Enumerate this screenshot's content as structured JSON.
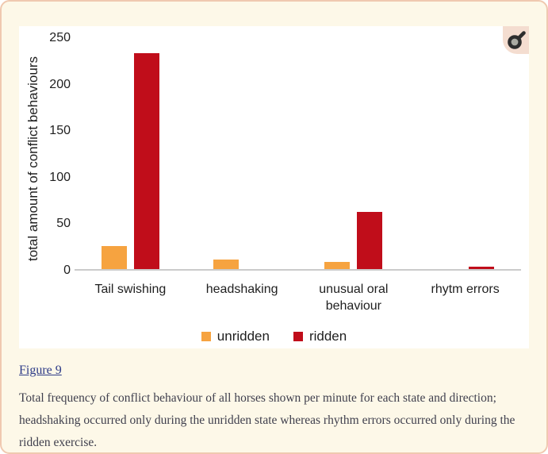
{
  "figure_panel": {
    "zoom_button": {
      "icon": "magnifier-icon"
    }
  },
  "chart_data": {
    "type": "bar",
    "categories": [
      "Tail swishing",
      "headshaking",
      "unusual oral behaviour",
      "rhytm errors"
    ],
    "series": [
      {
        "name": "unridden",
        "color": "#F6A340",
        "values": [
          25,
          10,
          8,
          0
        ]
      },
      {
        "name": "ridden",
        "color": "#C00D1A",
        "values": [
          233,
          0,
          62,
          3
        ]
      }
    ],
    "title": "",
    "xlabel": "",
    "ylabel": "total amount of conflict behaviours",
    "yticks": [
      250,
      200,
      150,
      100,
      50,
      0
    ],
    "ylim": [
      0,
      250
    ],
    "grid": false,
    "legend_position": "bottom"
  },
  "caption": {
    "link": "Figure 9",
    "text": "Total frequency of conflict behaviour of all horses shown per minute for each state and direction; headshaking occurred only during the unridden state whereas rhythm errors occurred only during the ridden exercise."
  },
  "colors": {
    "page_background": "#fdf8e8",
    "card_border": "#f0c9b0",
    "panel_background": "#ffffff",
    "chart_text": "#1f1f1f",
    "axis_line": "#cbcbcb",
    "caption_text": "#3f3f4d",
    "link": "#2c3a87",
    "icon_background": "#f4ddd0"
  }
}
